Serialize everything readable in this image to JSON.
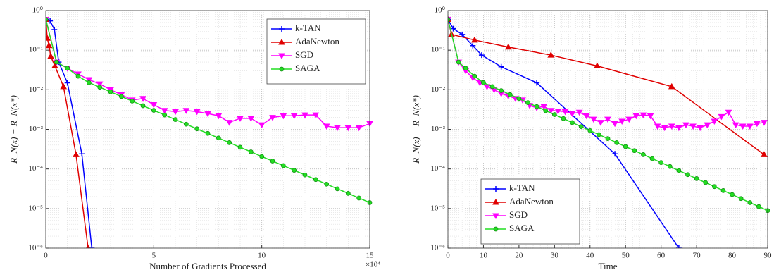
{
  "chart_data": [
    {
      "type": "line",
      "xlabel": "Number of Gradients Processed",
      "ylabel": "R_N(x) − R_N(x*)",
      "x_multiplier": "×10⁴",
      "xlim": [
        0,
        15
      ],
      "xticks": [
        0,
        5,
        10,
        15
      ],
      "ylim": [
        1e-06,
        1
      ],
      "log_y": true,
      "grid": true,
      "minor_grid": true,
      "legend": "upper right",
      "yticks": [
        {
          "value": 1,
          "label": "10⁰"
        },
        {
          "value": 0.1,
          "label": "10⁻¹"
        },
        {
          "value": 0.01,
          "label": "10⁻²"
        },
        {
          "value": 0.001,
          "label": "10⁻³"
        },
        {
          "value": 0.0001,
          "label": "10⁻⁴"
        },
        {
          "value": 1e-05,
          "label": "10⁻⁵"
        },
        {
          "value": 1e-06,
          "label": "10⁻⁶"
        }
      ],
      "series": [
        {
          "name": "k-TAN",
          "color": "#0000ff",
          "marker": "plus",
          "x": [
            0,
            0.2,
            0.4,
            0.6,
            1.0,
            1.67,
            2.13
          ],
          "values": [
            0.6,
            0.55,
            0.33,
            0.05,
            0.015,
            0.00024,
            1e-06
          ]
        },
        {
          "name": "AdaNewton",
          "color": "#e00000",
          "marker": "triangle-up",
          "x": [
            0,
            0.07,
            0.15,
            0.23,
            0.42,
            0.82,
            1.4,
            1.96
          ],
          "values": [
            0.6,
            0.2,
            0.13,
            0.07,
            0.04,
            0.012,
            0.00023,
            1e-06
          ]
        },
        {
          "name": "SGD",
          "color": "#ff00ff",
          "marker": "triangle-down",
          "x": [
            0,
            0.5,
            1,
            1.5,
            2,
            2.5,
            3,
            3.5,
            4,
            4.5,
            5,
            5.5,
            6,
            6.5,
            7,
            7.5,
            8,
            8.5,
            9,
            9.5,
            10,
            10.5,
            11,
            11.5,
            12,
            12.5,
            13,
            13.5,
            14,
            14.5,
            15
          ],
          "values": [
            0.6,
            0.05,
            0.035,
            0.025,
            0.018,
            0.014,
            0.01,
            0.0075,
            0.0055,
            0.006,
            0.0042,
            0.003,
            0.0028,
            0.003,
            0.0028,
            0.0025,
            0.0022,
            0.0015,
            0.0019,
            0.0019,
            0.0013,
            0.002,
            0.0022,
            0.0022,
            0.0023,
            0.0023,
            0.0012,
            0.0011,
            0.0011,
            0.0011,
            0.0014
          ]
        },
        {
          "name": "SAGA",
          "color": "#22dd22",
          "marker": "circle",
          "x": [
            0,
            0.5,
            1,
            1.5,
            2,
            2.5,
            3,
            3.5,
            4,
            4.5,
            5,
            5.5,
            6,
            6.5,
            7,
            7.5,
            8,
            8.5,
            9,
            9.5,
            10,
            10.5,
            11,
            11.5,
            12,
            12.5,
            13,
            13.5,
            14,
            14.5,
            15
          ],
          "values": [
            0.6,
            0.05,
            0.035,
            0.022,
            0.0151,
            0.0116,
            0.00885,
            0.00676,
            0.00517,
            0.00395,
            0.00302,
            0.00231,
            0.00177,
            0.00135,
            0.00103,
            0.000789,
            0.000604,
            0.000461,
            0.000353,
            0.00027,
            0.000206,
            0.000158,
            0.000121,
            9.23e-05,
            7.05e-05,
            5.39e-05,
            4.12e-05,
            3.15e-05,
            2.41e-05,
            1.84e-05,
            1.41e-05
          ]
        }
      ]
    },
    {
      "type": "line",
      "xlabel": "Time",
      "ylabel": "R_N(x) − R_N(x*)",
      "xlim": [
        0,
        90
      ],
      "xticks": [
        0,
        10,
        20,
        30,
        40,
        50,
        60,
        70,
        80,
        90
      ],
      "ylim": [
        1e-06,
        1
      ],
      "log_y": true,
      "grid": true,
      "minor_grid": true,
      "legend": "lower left",
      "yticks": [
        {
          "value": 1,
          "label": "10⁰"
        },
        {
          "value": 0.1,
          "label": "10⁻¹"
        },
        {
          "value": 0.01,
          "label": "10⁻²"
        },
        {
          "value": 0.001,
          "label": "10⁻³"
        },
        {
          "value": 0.0001,
          "label": "10⁻⁴"
        },
        {
          "value": 1e-05,
          "label": "10⁻⁵"
        },
        {
          "value": 1e-06,
          "label": "10⁻⁶"
        }
      ],
      "series": [
        {
          "name": "k-TAN",
          "color": "#0000ff",
          "marker": "plus",
          "x": [
            0,
            1.5,
            4,
            7,
            9.5,
            15,
            25,
            47,
            65
          ],
          "values": [
            0.6,
            0.35,
            0.25,
            0.13,
            0.075,
            0.038,
            0.015,
            0.00024,
            1e-06
          ]
        },
        {
          "name": "AdaNewton",
          "color": "#e00000",
          "marker": "triangle-up",
          "x": [
            0,
            1,
            7.5,
            17,
            29,
            42,
            63,
            89
          ],
          "values": [
            0.6,
            0.25,
            0.18,
            0.12,
            0.075,
            0.04,
            0.012,
            0.00023
          ]
        },
        {
          "name": "SGD",
          "color": "#ff00ff",
          "marker": "triangle-down",
          "x": [
            0,
            3,
            5,
            7,
            9,
            11,
            13,
            15,
            17,
            19,
            21,
            23,
            25,
            27,
            29,
            31,
            33,
            35,
            37,
            39,
            41,
            43,
            45,
            47,
            49,
            51,
            53,
            55,
            57,
            59,
            61,
            63,
            65,
            67,
            69,
            71,
            73,
            75,
            77,
            79,
            81,
            83,
            85,
            87,
            89
          ],
          "values": [
            0.6,
            0.05,
            0.03,
            0.02,
            0.015,
            0.012,
            0.01,
            0.008,
            0.007,
            0.006,
            0.0055,
            0.004,
            0.0035,
            0.0038,
            0.003,
            0.0029,
            0.0028,
            0.0025,
            0.0027,
            0.0022,
            0.0018,
            0.0015,
            0.0018,
            0.0014,
            0.0016,
            0.0018,
            0.0022,
            0.0023,
            0.0022,
            0.0012,
            0.0011,
            0.0012,
            0.0011,
            0.0013,
            0.0012,
            0.0011,
            0.0013,
            0.0016,
            0.0021,
            0.0027,
            0.0013,
            0.0012,
            0.0012,
            0.0014,
            0.0015
          ]
        },
        {
          "name": "SAGA",
          "color": "#22dd22",
          "marker": "circle",
          "x": [
            0,
            3,
            5,
            7.5,
            10,
            12.5,
            15,
            17.5,
            20,
            22.5,
            25,
            27.5,
            30,
            32.5,
            35,
            37.5,
            40,
            42.5,
            45,
            47.5,
            50,
            52.5,
            55,
            57.5,
            60,
            62.5,
            65,
            67.5,
            70,
            72.5,
            75,
            77.5,
            80,
            82.5,
            85,
            87.5,
            90
          ],
          "values": [
            0.6,
            0.05,
            0.035,
            0.022,
            0.0151,
            0.012,
            0.00951,
            0.00754,
            0.00597,
            0.00473,
            0.00375,
            0.00297,
            0.00236,
            0.00187,
            0.00148,
            0.00117,
            0.000929,
            0.000736,
            0.000583,
            0.000462,
            0.000366,
            0.00029,
            0.00023,
            0.000182,
            0.000145,
            0.000115,
            9.08e-05,
            7.19e-05,
            5.7e-05,
            4.52e-05,
            3.58e-05,
            2.84e-05,
            2.25e-05,
            1.78e-05,
            1.41e-05,
            1.12e-05,
            8.87e-06
          ]
        }
      ]
    }
  ]
}
